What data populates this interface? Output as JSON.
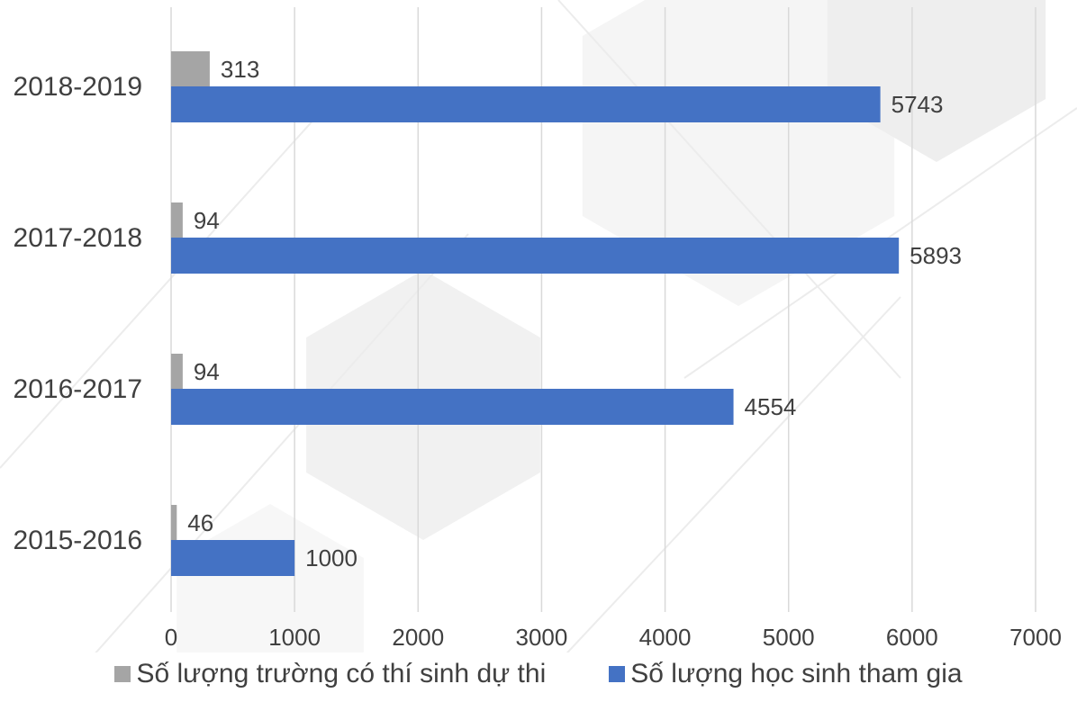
{
  "chart_data": {
    "type": "bar",
    "orientation": "horizontal",
    "categories": [
      "2015-2016",
      "2016-2017",
      "2017-2018",
      "2018-2019"
    ],
    "series": [
      {
        "name": "Số lượng trường có thí sinh dự thi",
        "values": [
          46,
          94,
          94,
          313
        ],
        "color": "#a5a5a5"
      },
      {
        "name": "Số lượng học sinh tham gia",
        "values": [
          1000,
          4554,
          5893,
          5743
        ],
        "color": "#4472c4"
      }
    ],
    "xlim": [
      0,
      7000
    ],
    "xticks": [
      "0",
      "1000",
      "2000",
      "3000",
      "4000",
      "5000",
      "6000",
      "7000"
    ],
    "grid": true,
    "legend_position": "bottom",
    "data_labels": true
  }
}
